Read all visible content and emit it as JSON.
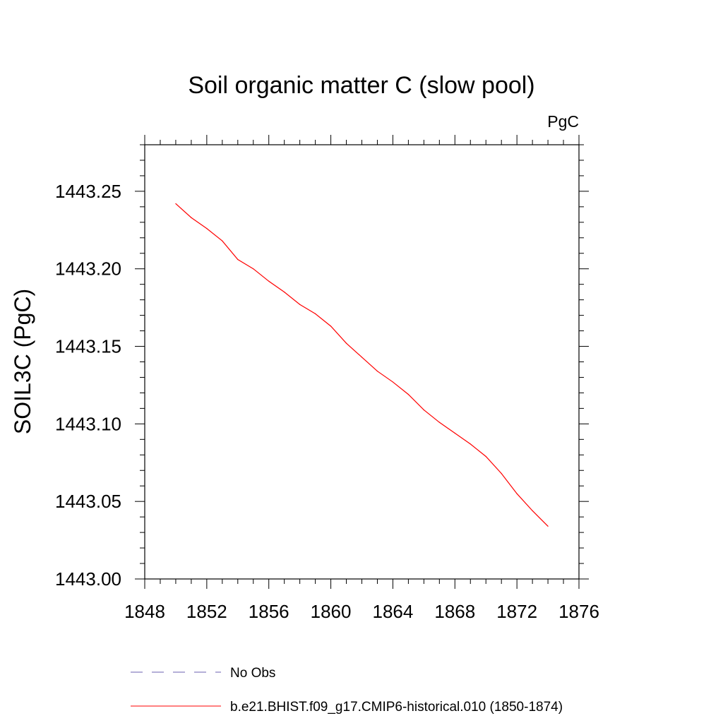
{
  "chart_data": {
    "type": "line",
    "title": "Soil organic matter C (slow pool)",
    "units": "PgC",
    "xlabel": "",
    "ylabel": "SOIL3C  (PgC)",
    "xlim": [
      1848,
      1876
    ],
    "ylim": [
      1443.0,
      1443.28
    ],
    "xticks": [
      1848,
      1852,
      1856,
      1860,
      1864,
      1868,
      1872,
      1876
    ],
    "xtick_labels": [
      "1848",
      "1852",
      "1856",
      "1860",
      "1864",
      "1868",
      "1872",
      "1876"
    ],
    "yticks": [
      1443.0,
      1443.05,
      1443.1,
      1443.15,
      1443.2,
      1443.25
    ],
    "ytick_labels": [
      "1443.00",
      "1443.05",
      "1443.10",
      "1443.15",
      "1443.20",
      "1443.25"
    ],
    "grid": false,
    "legend_position": "bottom",
    "series": [
      {
        "name": "b.e21.BHIST.f09_g17.CMIP6-historical.010 (1850-1874)",
        "color": "#ff0000",
        "dash": "solid",
        "x": [
          1850,
          1851,
          1852,
          1853,
          1854,
          1855,
          1856,
          1857,
          1858,
          1859,
          1860,
          1861,
          1862,
          1863,
          1864,
          1865,
          1866,
          1867,
          1868,
          1869,
          1870,
          1871,
          1872,
          1873,
          1874
        ],
        "y": [
          1443.242,
          1443.233,
          1443.226,
          1443.218,
          1443.206,
          1443.2,
          1443.192,
          1443.185,
          1443.177,
          1443.171,
          1443.163,
          1443.152,
          1443.143,
          1443.134,
          1443.127,
          1443.119,
          1443.109,
          1443.101,
          1443.094,
          1443.087,
          1443.079,
          1443.068,
          1443.055,
          1443.044,
          1443.034
        ]
      }
    ],
    "legend": [
      {
        "label": "No Obs",
        "color": "#6b5fb0",
        "dash": "dashed"
      },
      {
        "label": "b.e21.BHIST.f09_g17.CMIP6-historical.010 (1850-1874)",
        "color": "#ff0000",
        "dash": "solid"
      }
    ]
  }
}
